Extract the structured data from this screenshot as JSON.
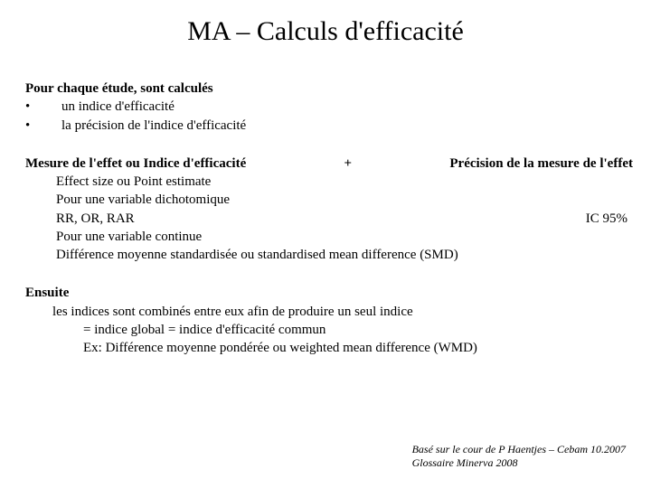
{
  "title": "MA – Calculs d'efficacité",
  "intro": {
    "heading": "Pour chaque étude, sont calculés",
    "bullets": [
      "un indice d'efficacité",
      "la précision de l'indice d'efficacité"
    ],
    "bullet_symbol": "•"
  },
  "measure": {
    "left": "Mesure de l'effet ou Indice d'efficacité",
    "plus": "+",
    "right": "Précision de la mesure de l'effet",
    "lines": [
      "Effect size ou Point estimate",
      "Pour une variable dichotomique"
    ],
    "rr_line": "RR, OR, RAR",
    "ic": "IC 95%",
    "lines_after": [
      "Pour une variable continue",
      "Différence moyenne standardisée ou standardised mean difference (SMD)"
    ]
  },
  "ensuite": {
    "heading": "Ensuite",
    "line1": "les indices sont combinés entre eux afin de produire un seul indice",
    "line2": "= indice global = indice d'efficacité commun",
    "line3": "Ex: Différence moyenne pondérée ou weighted mean difference (WMD)"
  },
  "credit": {
    "line1": "Basé sur le cour de P Haentjes – Cebam 10.2007",
    "line2": "Glossaire Minerva 2008"
  },
  "colors": {
    "background": "#ffffff",
    "text": "#000000"
  }
}
